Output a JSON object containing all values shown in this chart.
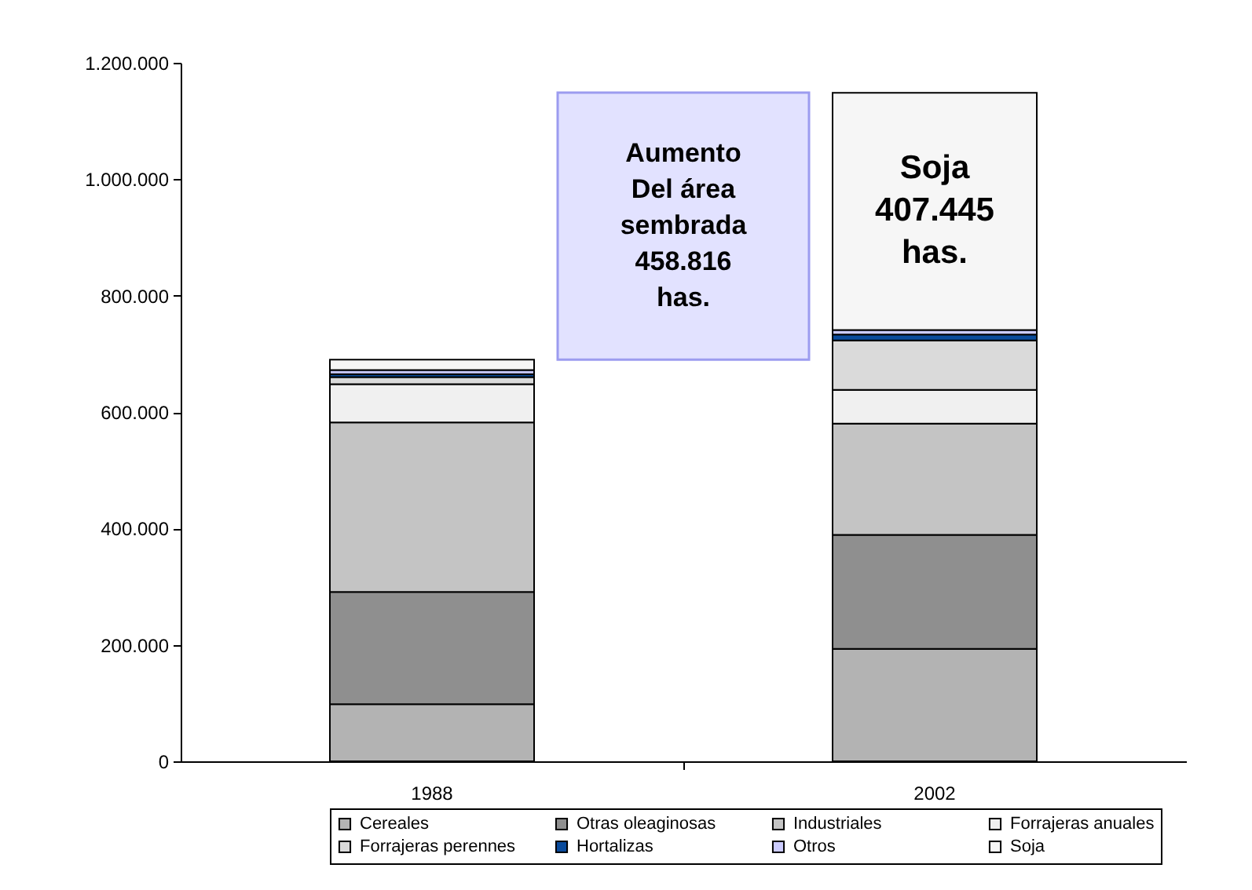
{
  "chart_data": {
    "type": "bar",
    "stacked": true,
    "categories": [
      "1988",
      null,
      "2002"
    ],
    "series": [
      {
        "name": "Cereales",
        "color": "#b3b3b3",
        "values": [
          98000,
          null,
          193000
        ]
      },
      {
        "name": "Otras oleaginosas",
        "color": "#8f8f8f",
        "values": [
          193000,
          null,
          196000
        ]
      },
      {
        "name": "Industriales",
        "color": "#c4c4c4",
        "values": [
          291000,
          null,
          191000
        ]
      },
      {
        "name": "Forrajeras anuales",
        "color": "#f0f0f0",
        "values": [
          66000,
          null,
          58000
        ]
      },
      {
        "name": "Forrajeras perennes",
        "color": "#dadada",
        "values": [
          12000,
          null,
          85000
        ]
      },
      {
        "name": "Hortalizas",
        "color": "#0a4b9c",
        "values": [
          5000,
          null,
          10000
        ]
      },
      {
        "name": "Otros",
        "color": "#ccccff",
        "values": [
          7000,
          null,
          8000
        ]
      },
      {
        "name": "Soja",
        "color": "#f6f6f6",
        "values": [
          18000,
          null,
          407445
        ],
        "value_labels": [
          null,
          null,
          "Soja\n407.445\nhas."
        ]
      },
      {
        "color": "#e2e2ff",
        "values": [
          null,
          458816,
          null
        ],
        "base": [
          null,
          690000,
          null
        ],
        "value_labels": [
          null,
          "Aumento\nDel área\nsembrada\n458.816\nhas.",
          null
        ]
      }
    ],
    "ylim": [
      0,
      1200000
    ],
    "yticks": [
      0,
      {
        "value": 200000,
        "label": "200.000"
      },
      {
        "value": 400000,
        "label": "400.000"
      },
      {
        "value": 600000,
        "label": "600.000"
      },
      {
        "value": 800000,
        "label": "800.000"
      },
      {
        "value": 1000000,
        "label": "1.000.000"
      },
      {
        "value": 1200000,
        "label": "1.200.000"
      }
    ],
    "legend": "bottom"
  }
}
